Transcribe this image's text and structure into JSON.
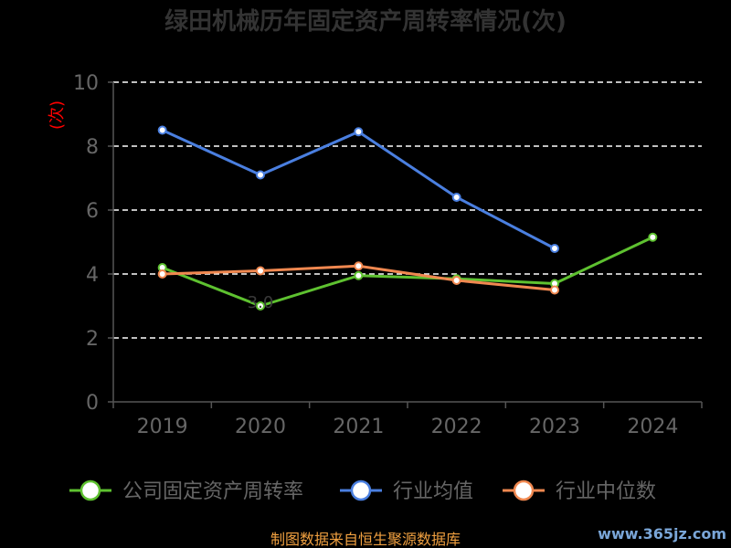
{
  "chart_data": {
    "type": "line",
    "title": "绿田机械历年固定资产周转率情况(次)",
    "ylabel": "(次)",
    "xlabel": "",
    "categories": [
      "2019",
      "2020",
      "2021",
      "2022",
      "2023",
      "2024"
    ],
    "ylim": [
      0,
      10
    ],
    "yticks": [
      0,
      2,
      4,
      6,
      8,
      10
    ],
    "grid": true,
    "legend_position": "bottom",
    "series": [
      {
        "name": "公司固定资产周转率",
        "color": "#5ec130",
        "values": [
          4.2,
          3.0,
          3.95,
          3.85,
          3.7,
          5.15
        ],
        "labels": [
          "",
          "3.0",
          "",
          "",
          "",
          ""
        ]
      },
      {
        "name": "行业均值",
        "color": "#4a7fe0",
        "values": [
          8.5,
          7.1,
          8.45,
          6.4,
          4.8,
          null
        ],
        "labels": [
          "",
          "",
          "",
          "",
          "",
          ""
        ]
      },
      {
        "name": "行业中位数",
        "color": "#f08850",
        "values": [
          4.0,
          4.1,
          4.25,
          3.8,
          3.5,
          null
        ],
        "labels": [
          "",
          "",
          "",
          "",
          "",
          ""
        ]
      }
    ]
  },
  "footer": {
    "source": "制图数据来自恒生聚源数据库",
    "watermark": "www.365jz.com"
  }
}
